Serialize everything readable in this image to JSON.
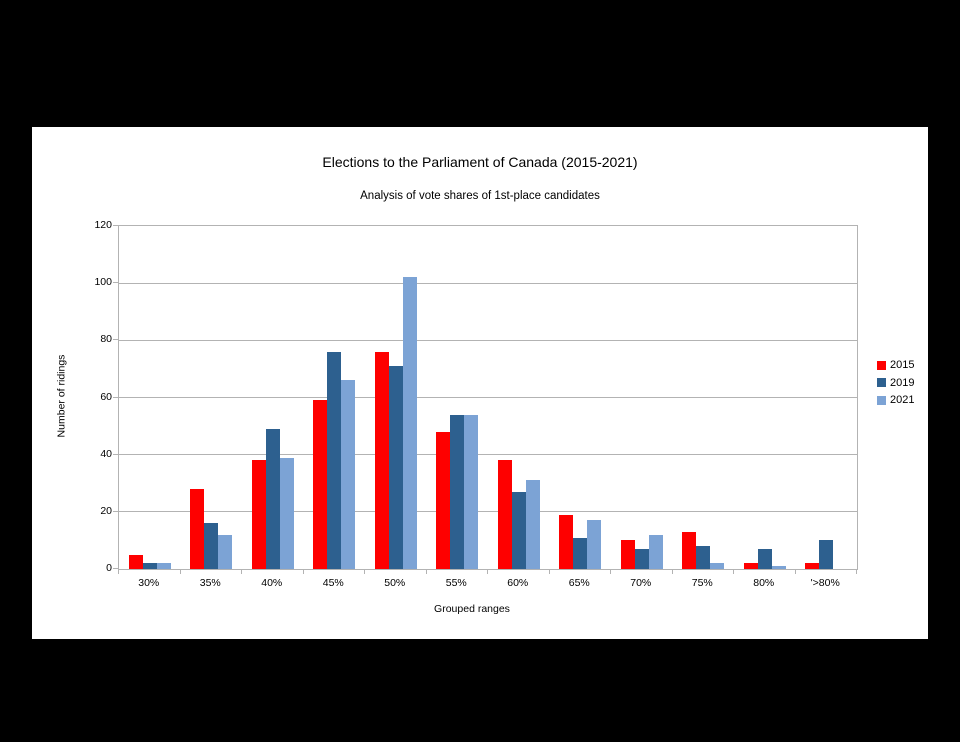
{
  "window": {
    "background_color": "#000000",
    "panel_color": "#ffffff"
  },
  "chart_data": {
    "type": "bar",
    "title": "Elections to the Parliament of Canada (2015-2021)",
    "subtitle": "Analysis of vote shares of 1st-place candidates",
    "xlabel": "Grouped ranges",
    "ylabel": "Number of ridings",
    "categories": [
      "30%",
      "35%",
      "40%",
      "45%",
      "50%",
      "55%",
      "60%",
      "65%",
      "70%",
      "75%",
      "80%",
      "'>80%"
    ],
    "series": [
      {
        "name": "2015",
        "color": "#fe0000",
        "values": [
          5,
          28,
          38,
          59,
          76,
          48,
          38,
          19,
          10,
          13,
          2,
          2
        ]
      },
      {
        "name": "2019",
        "color": "#2d608f",
        "values": [
          2,
          16,
          49,
          76,
          71,
          54,
          27,
          11,
          7,
          8,
          7,
          10
        ]
      },
      {
        "name": "2021",
        "color": "#7ca3d5",
        "values": [
          2,
          12,
          39,
          66,
          102,
          54,
          31,
          17,
          12,
          2,
          1,
          0
        ]
      }
    ],
    "ylim": [
      0,
      120
    ],
    "ytick_step": 20,
    "yticks": [
      0,
      20,
      40,
      60,
      80,
      100,
      120
    ],
    "grid": true,
    "legend_position": "right",
    "axis_color": "#b3b3b3",
    "text_color": "#000000"
  }
}
